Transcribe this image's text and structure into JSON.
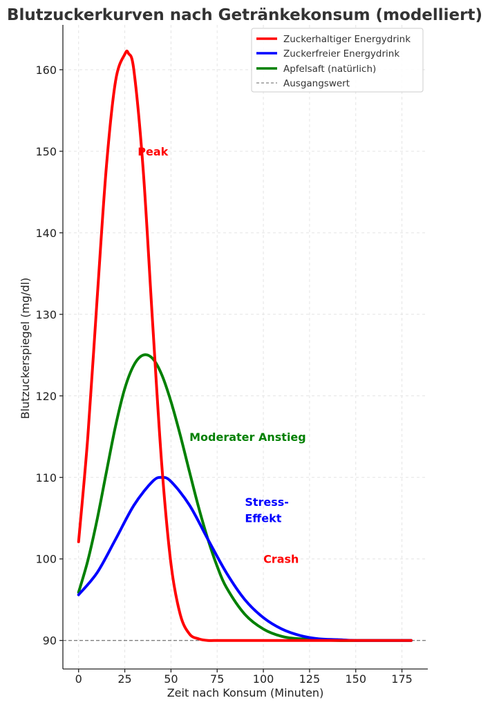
{
  "chart_data": {
    "type": "line",
    "title": "Blutzuckerkurven nach Getränkekonsum (modelliert)",
    "xlabel": "Zeit nach Konsum (Minuten)",
    "ylabel": "Blutzuckerspiegel (mg/dl)",
    "xlim": [
      -8.5,
      189
    ],
    "ylim": [
      86.5,
      165.5
    ],
    "xticks": [
      0,
      25,
      50,
      75,
      100,
      125,
      150,
      175
    ],
    "yticks": [
      90,
      100,
      110,
      120,
      130,
      140,
      150,
      160
    ],
    "grid": true,
    "legend_position": "top-right",
    "baseline": {
      "name": "Ausgangswert",
      "value": 90,
      "color": "#808080"
    },
    "series": [
      {
        "name": "Zuckerhaltiger Energydrink",
        "color": "#ff0000",
        "x": [
          0,
          5,
          10,
          15,
          20,
          25,
          27,
          30,
          35,
          40,
          45,
          50,
          55,
          60,
          65,
          70,
          75,
          80,
          90,
          100,
          120,
          150,
          180
        ],
        "y": [
          102.1,
          115.0,
          131.8,
          148.0,
          158.6,
          161.9,
          162.0,
          159.8,
          147.6,
          129.2,
          111.6,
          99.4,
          93.2,
          90.8,
          90.2,
          90.0,
          90.0,
          90.0,
          90.0,
          90.0,
          90.0,
          90.0,
          90.0
        ]
      },
      {
        "name": "Zuckerfreier Energydrink",
        "color": "#0000ff",
        "x": [
          0,
          10,
          20,
          30,
          40,
          45,
          50,
          60,
          70,
          80,
          90,
          100,
          110,
          120,
          130,
          140,
          150,
          160,
          170,
          180
        ],
        "y": [
          95.6,
          98.3,
          102.4,
          106.6,
          109.5,
          110.0,
          109.5,
          106.6,
          102.4,
          98.3,
          95.0,
          92.8,
          91.4,
          90.6,
          90.2,
          90.1,
          90.0,
          90.0,
          90.0,
          90.0
        ]
      },
      {
        "name": "Apfelsaft (natürlich)",
        "color": "#008000",
        "x": [
          0,
          5,
          10,
          15,
          20,
          25,
          30,
          35,
          40,
          45,
          50,
          55,
          60,
          65,
          70,
          75,
          80,
          90,
          100,
          110,
          120,
          140,
          160,
          180
        ],
        "y": [
          95.9,
          99.8,
          104.8,
          110.6,
          116.3,
          120.9,
          123.8,
          125.0,
          124.6,
          122.6,
          119.3,
          115.2,
          110.7,
          106.3,
          102.4,
          99.1,
          96.5,
          93.2,
          91.4,
          90.5,
          90.2,
          90.0,
          90.0,
          90.0
        ]
      }
    ],
    "annotations": [
      {
        "text": "Peak",
        "x": 32,
        "y": 150,
        "color": "#ff0000"
      },
      {
        "text": "Moderater Anstieg",
        "x": 60,
        "y": 115,
        "color": "#008000"
      },
      {
        "text": "Stress-",
        "x": 90,
        "y": 107,
        "color": "#0000ff"
      },
      {
        "text": "Effekt",
        "x": 90,
        "y": 105,
        "color": "#0000ff"
      },
      {
        "text": "Crash",
        "x": 100,
        "y": 100,
        "color": "#ff0000"
      }
    ]
  }
}
